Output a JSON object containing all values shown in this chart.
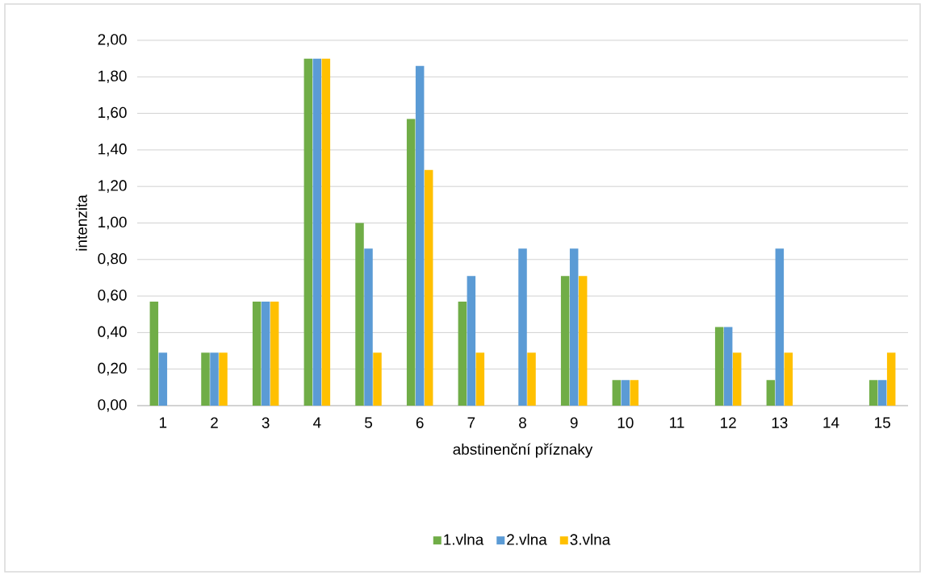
{
  "chart_data": {
    "type": "bar",
    "xlabel": "abstinenční příznaky",
    "ylabel": "intenzita",
    "categories": [
      "1",
      "2",
      "3",
      "4",
      "5",
      "6",
      "7",
      "8",
      "9",
      "10",
      "11",
      "12",
      "13",
      "14",
      "15"
    ],
    "series": [
      {
        "name": "1.vlna",
        "color": "#70ad47",
        "values": [
          0.57,
          0.29,
          0.57,
          1.9,
          1.0,
          1.57,
          0.57,
          0,
          0.71,
          0.14,
          0,
          0.43,
          0.14,
          0,
          0.14
        ]
      },
      {
        "name": "2.vlna",
        "color": "#5b9bd5",
        "values": [
          0.29,
          0.29,
          0.57,
          1.9,
          0.86,
          1.86,
          0.71,
          0.86,
          0.86,
          0.14,
          0,
          0.43,
          0.86,
          0,
          0.14
        ]
      },
      {
        "name": "3.vlna",
        "color": "#ffc000",
        "values": [
          0,
          0.29,
          0.57,
          1.9,
          0.29,
          1.29,
          0.29,
          0.29,
          0.71,
          0.14,
          0,
          0.29,
          0.29,
          0,
          0.29
        ]
      }
    ],
    "ylim": [
      0,
      2
    ],
    "yticks": [
      {
        "value": 0,
        "label": "0,00"
      },
      {
        "value": 0.2,
        "label": "0,20"
      },
      {
        "value": 0.4,
        "label": "0,40"
      },
      {
        "value": 0.6,
        "label": "0,60"
      },
      {
        "value": 0.8,
        "label": "0,80"
      },
      {
        "value": 1.0,
        "label": "1,00"
      },
      {
        "value": 1.2,
        "label": "1,20"
      },
      {
        "value": 1.4,
        "label": "1,40"
      },
      {
        "value": 1.6,
        "label": "1,60"
      },
      {
        "value": 1.8,
        "label": "1,80"
      },
      {
        "value": 2.0,
        "label": "2,00"
      }
    ],
    "grid": "y",
    "legend": "bottom"
  }
}
